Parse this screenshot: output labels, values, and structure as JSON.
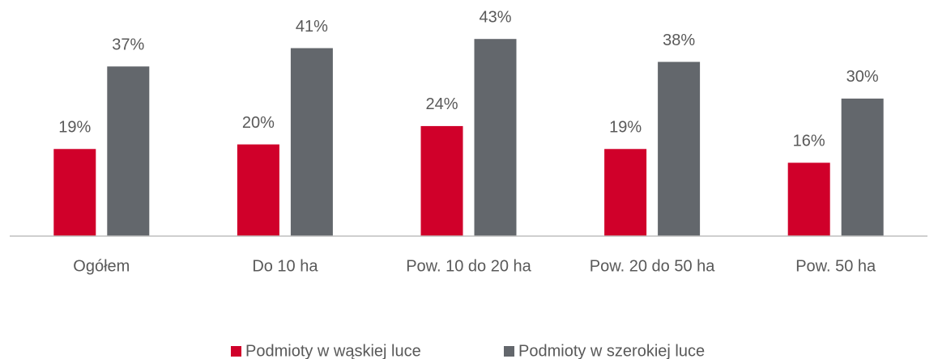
{
  "chart_data": {
    "type": "bar",
    "categories": [
      "Ogółem",
      "Do 10 ha",
      "Pow. 10 do 20 ha",
      "Pow. 20 do 50 ha",
      "Pow. 50 ha"
    ],
    "series": [
      {
        "name": "Podmioty w wąskiej luce",
        "color": "#d0002a",
        "values": [
          19,
          20,
          24,
          19,
          16
        ],
        "value_labels": [
          "19%",
          "20%",
          "24%",
          "19%",
          "16%"
        ]
      },
      {
        "name": "Podmioty w szerokiej luce",
        "color": "#63676c",
        "values": [
          37,
          41,
          43,
          38,
          30
        ],
        "value_labels": [
          "37%",
          "41%",
          "43%",
          "38%",
          "30%"
        ]
      }
    ],
    "ylim": [
      0,
      51.5
    ],
    "legend": "bottom"
  }
}
